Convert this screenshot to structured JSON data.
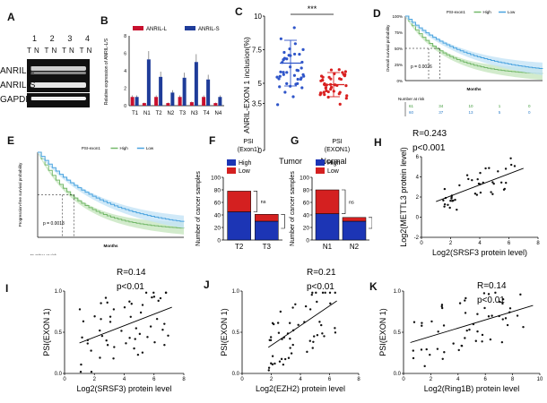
{
  "panels": {
    "A": {
      "label": "A",
      "lane_numbers": [
        "1",
        "2",
        "3",
        "4"
      ],
      "lane_tn": "T N  T N  T N  T N",
      "rows": [
        "ANRIL-L",
        "ANRIL-S",
        "GAPDH"
      ]
    },
    "B": {
      "label": "B",
      "legend": [
        "ANRIL-L",
        "ANRIL-S"
      ],
      "ylabel": "Relative expression of ANRIL-L/S",
      "chart_data": {
        "type": "bar",
        "categories": [
          "T1",
          "N1",
          "T2",
          "N2",
          "T3",
          "N3",
          "T4",
          "N4"
        ],
        "ylim": [
          0,
          8
        ],
        "yticks": [
          "0",
          "2",
          "4",
          "6",
          "8"
        ],
        "series": [
          {
            "name": "ANRIL-L",
            "color": "#c8102e",
            "values": [
              1.0,
              0.3,
              1.0,
              0.3,
              1.0,
              0.4,
              1.0,
              0.3
            ]
          },
          {
            "name": "ANRIL-S",
            "color": "#1f3c99",
            "values": [
              1.0,
              5.3,
              3.3,
              1.5,
              3.2,
              5.0,
              3.0,
              1.0
            ]
          }
        ]
      }
    },
    "C": {
      "label": "C",
      "ylabel": "ANRIL-EXON 1 inclusion(%)",
      "sig": "***",
      "chart_data": {
        "type": "scatter",
        "categories": [
          "Tumor",
          "Normal"
        ],
        "ylim": [
          0,
          10
        ],
        "yticks": [
          "0",
          "3.5",
          "5",
          "7.5",
          "10"
        ],
        "series": [
          {
            "name": "Tumor",
            "color": "#2f55c9",
            "mean": 6.5,
            "sd": 1.7
          },
          {
            "name": "Normal",
            "color": "#d92020",
            "mean": 4.9,
            "sd": 0.9
          }
        ]
      }
    },
    "D": {
      "label": "D",
      "legend": [
        "PSI-exon1",
        "High",
        "Low"
      ],
      "ylabel": "Overall survival probability",
      "xlabel": "Months",
      "pvalue": "p = 0.0026",
      "risk_title": "Number at risk",
      "risk_rows": [
        [
          "61",
          "34",
          "10",
          "1",
          "0"
        ],
        [
          "60",
          "37",
          "13",
          "5",
          "0"
        ]
      ],
      "yticks": [
        "100%",
        "75%",
        "50%",
        "25%",
        "0%"
      ]
    },
    "E": {
      "label": "E",
      "legend": [
        "PSI-exon1",
        "High",
        "Low"
      ],
      "ylabel": "Progression-free survival probability",
      "xlabel": "Months",
      "pvalue": "p = 0.0018",
      "risk_title": "Number at risk"
    },
    "F": {
      "label": "F",
      "title": "PSI\n(Exon1)",
      "ylabel": "Number of cancer samples",
      "legend": [
        "High",
        "Low"
      ],
      "ns": "ns",
      "chart_data": {
        "type": "bar",
        "categories": [
          "T2",
          "T3"
        ],
        "ylim": [
          0,
          100
        ],
        "yticks": [
          "0",
          "20",
          "40",
          "60",
          "80",
          "100"
        ],
        "series": [
          {
            "name": "High",
            "color": "#1c35b5",
            "values": [
              45,
              30
            ]
          },
          {
            "name": "Low",
            "color": "#d42020",
            "values": [
              33,
              11
            ]
          }
        ]
      }
    },
    "G": {
      "label": "G",
      "title": "PSI\n(EXON1)",
      "ylabel": "Number of cancer samples",
      "legend": [
        "High",
        "Low"
      ],
      "ns": "ns",
      "chart_data": {
        "type": "bar",
        "categories": [
          "N1",
          "N2"
        ],
        "ylim": [
          0,
          100
        ],
        "yticks": [
          "0",
          "20",
          "40",
          "60",
          "80",
          "100"
        ],
        "series": [
          {
            "name": "High",
            "color": "#1c35b5",
            "values": [
              42,
              30
            ]
          },
          {
            "name": "Low",
            "color": "#d42020",
            "values": [
              38,
              6
            ]
          }
        ]
      }
    },
    "H": {
      "label": "H",
      "r": "R=0.243",
      "p": "p<0.001",
      "ylabel": "Log2(METTL3 protein level)",
      "xlabel": "Log2(SRSF3 protein level)",
      "chart_data": {
        "type": "scatter",
        "xlim": [
          0,
          8
        ],
        "ylim": [
          -2,
          6
        ],
        "xticks": [
          "0",
          "2",
          "4",
          "6",
          "8"
        ],
        "yticks": [
          "-2",
          "0",
          "2",
          "4",
          "6"
        ]
      }
    },
    "I": {
      "label": "I",
      "r": "R=0.14",
      "p": "p<0.01",
      "ylabel": "PSI(EXON 1)",
      "xlabel": "Log2(SRSF3) protein level",
      "chart_data": {
        "type": "scatter",
        "xlim": [
          0,
          8
        ],
        "ylim": [
          0,
          1.0
        ],
        "xticks": [
          "0",
          "2",
          "4",
          "6",
          "8"
        ],
        "yticks": [
          "0.0",
          "0.5",
          "1.0"
        ]
      }
    },
    "J": {
      "label": "J",
      "r": "R=0.21",
      "p": "p<0.01",
      "ylabel": "PSI(EXON 1)",
      "xlabel": "Log2(EZH2) protein level",
      "chart_data": {
        "type": "scatter",
        "xlim": [
          0,
          8
        ],
        "ylim": [
          0,
          1.0
        ],
        "xticks": [
          "0",
          "2",
          "4",
          "6",
          "8"
        ],
        "yticks": [
          "0.0",
          "0.5",
          "1.0"
        ]
      }
    },
    "K": {
      "label": "K",
      "r": "R=0.14",
      "p": "p<0.01",
      "ylabel": "PSI(EXON 1)",
      "xlabel": "Log2(Ring1B) protein level",
      "chart_data": {
        "type": "scatter",
        "xlim": [
          0,
          10
        ],
        "ylim": [
          0,
          1.0
        ],
        "xticks": [
          "0",
          "2",
          "4",
          "6",
          "8",
          "10"
        ],
        "yticks": [
          "0.0",
          "0.5",
          "1.0"
        ]
      }
    }
  }
}
